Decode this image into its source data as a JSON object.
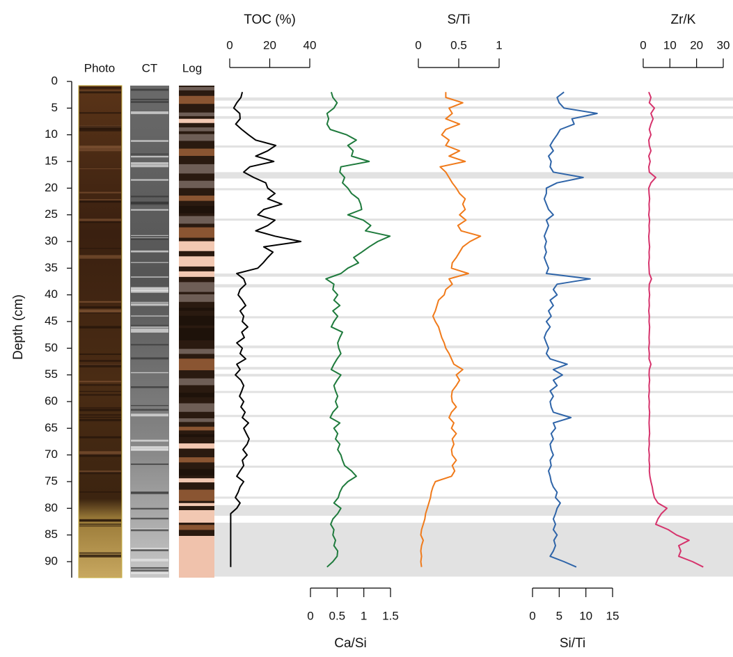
{
  "depth_axis": {
    "label": "Depth (cm)",
    "ylim": [
      0,
      93
    ],
    "yticks": [
      0,
      5,
      10,
      15,
      20,
      25,
      30,
      35,
      40,
      45,
      50,
      55,
      60,
      65,
      70,
      75,
      80,
      85,
      90
    ],
    "reversed": true
  },
  "core_columns": [
    "Photo",
    "CT",
    "Log"
  ],
  "shaded_intervals": [
    [
      3.0,
      3.6
    ],
    [
      4.7,
      5.1
    ],
    [
      6.5,
      7.0
    ],
    [
      12.0,
      12.4
    ],
    [
      17.0,
      18.2
    ],
    [
      20.0,
      20.4
    ],
    [
      25.7,
      26.1
    ],
    [
      36.0,
      36.6
    ],
    [
      38.0,
      38.6
    ],
    [
      44.0,
      44.4
    ],
    [
      49.5,
      50.0
    ],
    [
      51.3,
      51.7
    ],
    [
      53.5,
      54.0
    ],
    [
      54.8,
      55.3
    ],
    [
      58.0,
      58.4
    ],
    [
      62.5,
      62.9
    ],
    [
      67.2,
      67.6
    ],
    [
      72.0,
      72.4
    ],
    [
      77.8,
      78.2
    ],
    [
      79.4,
      81.4
    ],
    [
      82.7,
      92.8
    ]
  ],
  "chart_data": [
    {
      "type": "line",
      "title": "TOC (%)",
      "axis_position": "top",
      "color": "#000000",
      "xlim": [
        0,
        40
      ],
      "xticks": [
        0,
        20,
        40
      ],
      "depth": [
        2,
        3,
        4,
        5,
        6,
        7,
        8,
        9,
        10,
        11,
        12,
        13,
        14,
        15,
        16,
        17,
        18,
        19,
        20,
        21,
        22,
        23,
        24,
        25,
        26,
        27,
        28,
        29,
        30,
        31,
        32,
        33,
        34,
        35,
        36,
        37,
        38,
        39,
        40,
        41,
        42,
        43,
        44,
        45,
        46,
        47,
        48,
        49,
        50,
        51,
        52,
        53,
        54,
        55,
        56,
        57,
        58,
        59,
        60,
        61,
        62,
        63,
        64,
        65,
        66,
        67,
        68,
        69,
        70,
        71,
        72,
        73,
        74,
        75,
        76,
        77,
        78,
        79,
        80,
        81,
        82,
        83,
        84,
        85,
        86,
        87,
        88,
        89,
        90,
        91
      ],
      "values": [
        6.3,
        5.6,
        3.5,
        2,
        5,
        5.2,
        3,
        6,
        9.4,
        13,
        23,
        19,
        13,
        22,
        10,
        7,
        12,
        18,
        19,
        22.6,
        19,
        26,
        17,
        14,
        22.6,
        19,
        13,
        22.6,
        35.5,
        17,
        21.6,
        19,
        16.7,
        14,
        3.5,
        7,
        8,
        5.2,
        4.2,
        6.3,
        8,
        5.2,
        7,
        6.3,
        9,
        6,
        7.3,
        3.5,
        6.3,
        5.2,
        8,
        3.5,
        5.2,
        2.8,
        5.6,
        7,
        6,
        4.9,
        7,
        5.6,
        7.7,
        6.3,
        9.4,
        7,
        8.3,
        9.7,
        8.7,
        6.6,
        8.7,
        6.3,
        7,
        5.2,
        3.5,
        7,
        5.2,
        4.2,
        2.8,
        5.2,
        3.5,
        0.5,
        0.5,
        0.5,
        0.5,
        0.5,
        0.5,
        0.5,
        0.5,
        0.5,
        0.5,
        0.5
      ]
    },
    {
      "type": "line",
      "title": "Ca/Si",
      "axis_position": "bottom",
      "color": "#1e7a3c",
      "xlim": [
        0,
        1.5
      ],
      "xticks": [
        0,
        0.5,
        1,
        1.5
      ],
      "depth": [
        2,
        3,
        4,
        5,
        6,
        7,
        8,
        9,
        10,
        11,
        12,
        13,
        14,
        15,
        16,
        17,
        18,
        19,
        20,
        21,
        22,
        23,
        24,
        25,
        26,
        27,
        28,
        29,
        30,
        31,
        32,
        33,
        34,
        35,
        36,
        37,
        38,
        39,
        40,
        41,
        42,
        43,
        44,
        45,
        46,
        47,
        48,
        49,
        50,
        51,
        52,
        53,
        54,
        55,
        56,
        57,
        58,
        59,
        60,
        61,
        62,
        63,
        64,
        65,
        66,
        67,
        68,
        69,
        70,
        71,
        72,
        73,
        74,
        75,
        76,
        77,
        78,
        79,
        80,
        81,
        82,
        83,
        84,
        85,
        86,
        87,
        88,
        89,
        90,
        91
      ],
      "values": [
        0.39,
        0.42,
        0.5,
        0.44,
        0.31,
        0.34,
        0.31,
        0.37,
        0.68,
        0.86,
        0.7,
        0.8,
        0.77,
        1.1,
        0.57,
        0.55,
        0.64,
        0.6,
        0.7,
        0.77,
        0.9,
        0.94,
        0.96,
        0.7,
        0.99,
        1.13,
        1.03,
        1.49,
        1.26,
        1.1,
        0.96,
        0.81,
        0.9,
        0.7,
        0.57,
        0.29,
        0.44,
        0.42,
        0.51,
        0.44,
        0.55,
        0.42,
        0.51,
        0.44,
        0.39,
        0.6,
        0.55,
        0.51,
        0.53,
        0.57,
        0.5,
        0.44,
        0.39,
        0.57,
        0.5,
        0.44,
        0.47,
        0.51,
        0.47,
        0.51,
        0.42,
        0.37,
        0.55,
        0.44,
        0.51,
        0.47,
        0.55,
        0.51,
        0.57,
        0.6,
        0.64,
        0.77,
        0.86,
        0.7,
        0.6,
        0.55,
        0.52,
        0.44,
        0.57,
        0.51,
        0.42,
        0.38,
        0.44,
        0.42,
        0.47,
        0.44,
        0.51,
        0.5,
        0.42,
        0.31
      ]
    },
    {
      "type": "line",
      "title": "S/Ti",
      "axis_position": "top",
      "color": "#f07a1a",
      "xlim": [
        0,
        1
      ],
      "xticks": [
        0,
        0.5,
        1
      ],
      "depth": [
        2,
        3,
        4,
        5,
        6,
        7,
        8,
        9,
        10,
        11,
        12,
        13,
        14,
        15,
        16,
        17,
        18,
        19,
        20,
        21,
        22,
        23,
        24,
        25,
        26,
        27,
        28,
        29,
        30,
        31,
        32,
        33,
        34,
        35,
        36,
        37,
        38,
        39,
        40,
        41,
        42,
        43,
        44,
        45,
        46,
        47,
        48,
        49,
        50,
        51,
        52,
        53,
        54,
        55,
        56,
        57,
        58,
        59,
        60,
        61,
        62,
        63,
        64,
        65,
        66,
        67,
        68,
        69,
        70,
        71,
        72,
        73,
        74,
        75,
        76,
        77,
        78,
        79,
        80,
        81,
        82,
        83,
        84,
        85,
        86,
        87,
        88,
        89,
        90,
        91
      ],
      "values": [
        0.34,
        0.34,
        0.55,
        0.38,
        0.42,
        0.34,
        0.51,
        0.34,
        0.29,
        0.38,
        0.34,
        0.51,
        0.38,
        0.58,
        0.27,
        0.34,
        0.38,
        0.42,
        0.47,
        0.51,
        0.58,
        0.55,
        0.58,
        0.51,
        0.59,
        0.49,
        0.53,
        0.77,
        0.64,
        0.55,
        0.51,
        0.47,
        0.42,
        0.41,
        0.62,
        0.38,
        0.42,
        0.34,
        0.32,
        0.25,
        0.23,
        0.21,
        0.18,
        0.21,
        0.25,
        0.27,
        0.29,
        0.32,
        0.34,
        0.38,
        0.41,
        0.44,
        0.55,
        0.47,
        0.51,
        0.47,
        0.42,
        0.41,
        0.42,
        0.47,
        0.41,
        0.38,
        0.44,
        0.41,
        0.47,
        0.42,
        0.44,
        0.41,
        0.42,
        0.47,
        0.42,
        0.45,
        0.41,
        0.21,
        0.18,
        0.16,
        0.15,
        0.13,
        0.11,
        0.09,
        0.08,
        0.06,
        0.04,
        0.03,
        0.06,
        0.04,
        0.03,
        0.04,
        0.03,
        0.04
      ]
    },
    {
      "type": "line",
      "title": "Si/Ti",
      "axis_position": "bottom",
      "color": "#2e64a8",
      "xlim": [
        0,
        15
      ],
      "xticks": [
        0,
        5,
        10,
        15
      ],
      "depth": [
        2,
        3,
        4,
        5,
        6,
        7,
        8,
        9,
        10,
        11,
        12,
        13,
        14,
        15,
        16,
        17,
        18,
        19,
        20,
        21,
        22,
        23,
        24,
        25,
        26,
        27,
        28,
        29,
        30,
        31,
        32,
        33,
        34,
        35,
        36,
        37,
        38,
        39,
        40,
        41,
        42,
        43,
        44,
        45,
        46,
        47,
        48,
        49,
        50,
        51,
        52,
        53,
        54,
        55,
        56,
        57,
        58,
        59,
        60,
        61,
        62,
        63,
        64,
        65,
        66,
        67,
        68,
        69,
        70,
        71,
        72,
        73,
        74,
        75,
        76,
        77,
        78,
        79,
        80,
        81,
        82,
        83,
        84,
        85,
        86,
        87,
        88,
        89,
        90,
        91
      ],
      "values": [
        5.9,
        4.6,
        5,
        5.9,
        12.1,
        7.4,
        7.8,
        5.2,
        4.6,
        3.9,
        3.3,
        3.9,
        3,
        3.5,
        3.3,
        3.9,
        9.5,
        4.6,
        2.6,
        2.6,
        2.2,
        2.6,
        3,
        3.9,
        2.6,
        3,
        2.6,
        2.2,
        2.6,
        2.3,
        2.6,
        2.2,
        2.6,
        3,
        2.6,
        10.8,
        4.6,
        3.9,
        4.6,
        3.3,
        3.9,
        3,
        3.5,
        2.6,
        3.3,
        2.6,
        2.2,
        2.6,
        3,
        2.6,
        3.3,
        6.5,
        3.9,
        5.6,
        3.9,
        4.6,
        3.3,
        3.9,
        3.3,
        3.5,
        3.9,
        7.2,
        3.9,
        4.3,
        3.5,
        3.9,
        3.3,
        3.5,
        3.9,
        3.3,
        3.5,
        3,
        3.3,
        3.5,
        3.9,
        4.6,
        4.3,
        5.2,
        4.6,
        4.3,
        3.9,
        4.3,
        3.9,
        4.6,
        4,
        4.3,
        3.9,
        3.3,
        5.9,
        8.2
      ]
    },
    {
      "type": "line",
      "title": "Zr/K",
      "axis_position": "top",
      "color": "#d6336c",
      "xlim": [
        0,
        30
      ],
      "xticks": [
        0,
        10,
        20,
        30
      ],
      "depth": [
        2,
        3,
        4,
        5,
        6,
        7,
        8,
        9,
        10,
        11,
        12,
        13,
        14,
        15,
        16,
        17,
        18,
        19,
        20,
        21,
        22,
        23,
        24,
        25,
        26,
        27,
        28,
        29,
        30,
        31,
        32,
        33,
        34,
        35,
        36,
        37,
        38,
        39,
        40,
        41,
        42,
        43,
        44,
        45,
        46,
        47,
        48,
        49,
        50,
        51,
        52,
        53,
        54,
        55,
        56,
        57,
        58,
        59,
        60,
        61,
        62,
        63,
        64,
        65,
        66,
        67,
        68,
        69,
        70,
        71,
        72,
        73,
        74,
        75,
        76,
        77,
        78,
        79,
        80,
        81,
        82,
        83,
        84,
        85,
        86,
        87,
        88,
        89,
        90,
        91
      ],
      "values": [
        2.1,
        2.9,
        2.3,
        4.2,
        2.9,
        3.7,
        2.9,
        2.3,
        2.9,
        2.1,
        2.3,
        2.9,
        2.1,
        2.6,
        2.1,
        2.3,
        4.7,
        2.9,
        2.1,
        2.2,
        2.4,
        2.2,
        2.3,
        2.1,
        2.4,
        2.2,
        2.3,
        2.1,
        2.2,
        2.4,
        2.2,
        2.3,
        2.1,
        2.2,
        2.3,
        3.1,
        2.3,
        2.2,
        2.4,
        2.2,
        2.3,
        2.1,
        2.3,
        2.2,
        2.4,
        2.3,
        2.2,
        2.3,
        2.1,
        2.3,
        2.2,
        2.9,
        2.3,
        2.2,
        2.4,
        2.2,
        2.3,
        2.1,
        2.3,
        2.2,
        2.4,
        2.3,
        2.2,
        2.3,
        2.4,
        2.2,
        2.3,
        2.1,
        2.3,
        2.2,
        2.4,
        2.3,
        2.5,
        2.9,
        3.4,
        3.7,
        4.2,
        5.5,
        8.9,
        6.8,
        5.5,
        4.7,
        9.4,
        12.5,
        17.2,
        13.3,
        14.1,
        13.3,
        18.5,
        22.5
      ]
    }
  ]
}
